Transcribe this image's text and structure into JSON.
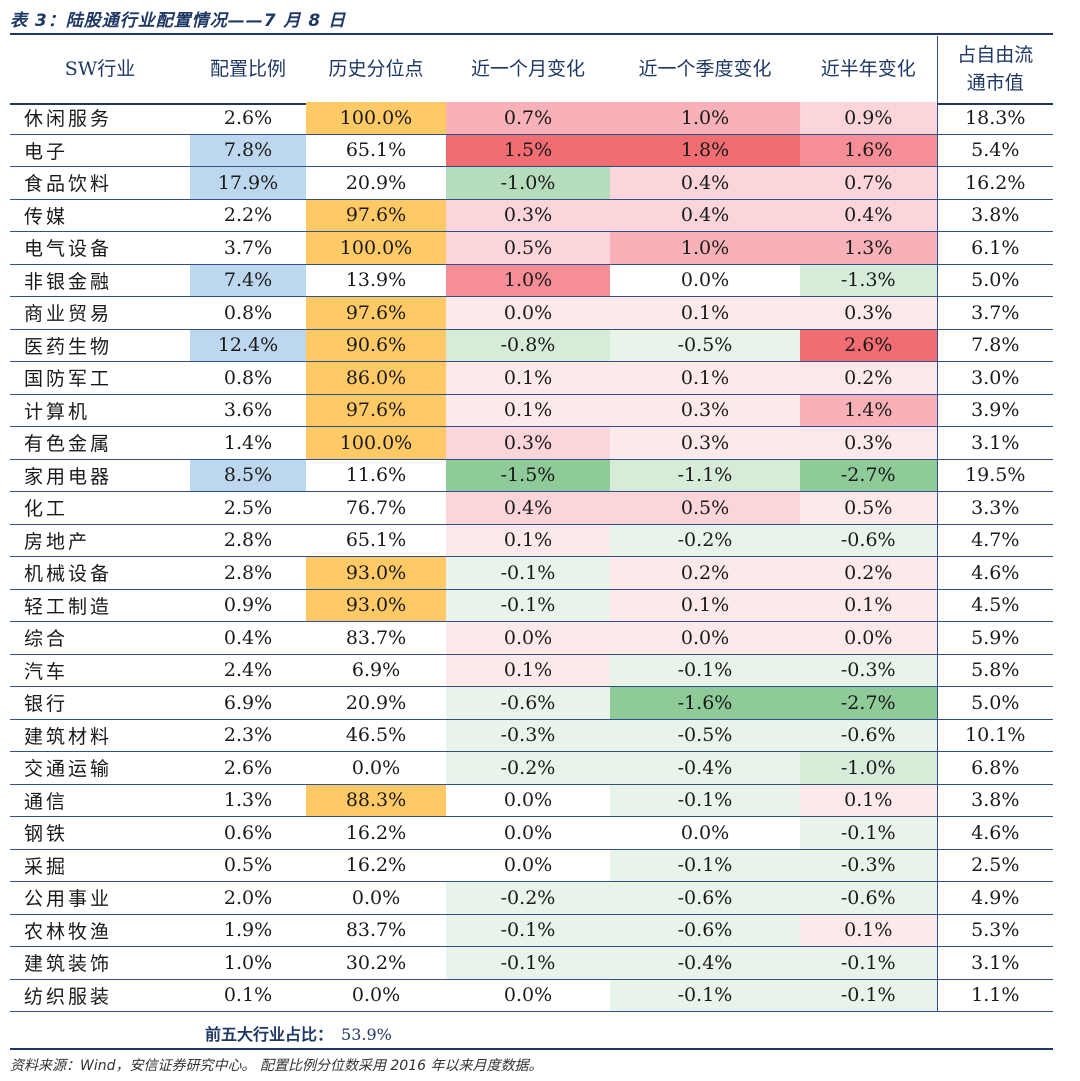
{
  "title": "表 3：陆股通行业配置情况——7 月 8 日",
  "headers": [
    "SW行业",
    "配置比例",
    "历史分位点",
    "近一个月变化",
    "近一个季度变化",
    "近半年变化",
    "占自由流",
    "通市值"
  ],
  "colors": {
    "blue": "#bdd7ee",
    "orange": "#ffc966",
    "red1": "#fde9ec",
    "red2": "#fbd5da",
    "red3": "#f8b1b8",
    "red4": "#f58e96",
    "red5": "#f26d72",
    "green1": "#e8f4ea",
    "green2": "#d6ecd9",
    "green3": "#b5dcbb",
    "green4": "#8ecb98"
  },
  "rows": [
    {
      "cells": [
        "休闲服务",
        "2.6%",
        "100.0%",
        "0.7%",
        "1.0%",
        "0.9%",
        "18.3%"
      ],
      "fill": [
        "",
        "",
        "orange",
        "red3",
        "red3",
        "red2",
        ""
      ]
    },
    {
      "cells": [
        "电子",
        "7.8%",
        "65.1%",
        "1.5%",
        "1.8%",
        "1.6%",
        "5.4%"
      ],
      "fill": [
        "",
        "blue",
        "",
        "red5",
        "red5",
        "red4",
        ""
      ]
    },
    {
      "cells": [
        "食品饮料",
        "17.9%",
        "20.9%",
        "-1.0%",
        "0.4%",
        "0.7%",
        "16.2%"
      ],
      "fill": [
        "",
        "blue",
        "",
        "green3",
        "red2",
        "red2",
        ""
      ]
    },
    {
      "cells": [
        "传媒",
        "2.2%",
        "97.6%",
        "0.3%",
        "0.4%",
        "0.4%",
        "3.8%"
      ],
      "fill": [
        "",
        "",
        "orange",
        "red2",
        "red2",
        "red2",
        ""
      ]
    },
    {
      "cells": [
        "电气设备",
        "3.7%",
        "100.0%",
        "0.5%",
        "1.0%",
        "1.3%",
        "6.1%"
      ],
      "fill": [
        "",
        "",
        "orange",
        "red2",
        "red3",
        "red3",
        ""
      ]
    },
    {
      "cells": [
        "非银金融",
        "7.4%",
        "13.9%",
        "1.0%",
        "0.0%",
        "-1.3%",
        "5.0%"
      ],
      "fill": [
        "",
        "blue",
        "",
        "red4",
        "",
        "green2",
        ""
      ]
    },
    {
      "cells": [
        "商业贸易",
        "0.8%",
        "97.6%",
        "0.0%",
        "0.1%",
        "0.3%",
        "3.7%"
      ],
      "fill": [
        "",
        "",
        "orange",
        "red1",
        "red1",
        "red1",
        ""
      ]
    },
    {
      "cells": [
        "医药生物",
        "12.4%",
        "90.6%",
        "-0.8%",
        "-0.5%",
        "2.6%",
        "7.8%"
      ],
      "fill": [
        "",
        "blue",
        "orange",
        "green2",
        "green1",
        "red5",
        ""
      ]
    },
    {
      "cells": [
        "国防军工",
        "0.8%",
        "86.0%",
        "0.1%",
        "0.1%",
        "0.2%",
        "3.0%"
      ],
      "fill": [
        "",
        "",
        "orange",
        "red1",
        "red1",
        "red1",
        ""
      ]
    },
    {
      "cells": [
        "计算机",
        "3.6%",
        "97.6%",
        "0.1%",
        "0.3%",
        "1.4%",
        "3.9%"
      ],
      "fill": [
        "",
        "",
        "orange",
        "red1",
        "red1",
        "red3",
        ""
      ]
    },
    {
      "cells": [
        "有色金属",
        "1.4%",
        "100.0%",
        "0.3%",
        "0.3%",
        "0.3%",
        "3.1%"
      ],
      "fill": [
        "",
        "",
        "orange",
        "red2",
        "red1",
        "red1",
        ""
      ]
    },
    {
      "cells": [
        "家用电器",
        "8.5%",
        "11.6%",
        "-1.5%",
        "-1.1%",
        "-2.7%",
        "19.5%"
      ],
      "fill": [
        "",
        "blue",
        "",
        "green4",
        "green2",
        "green4",
        ""
      ]
    },
    {
      "cells": [
        "化工",
        "2.5%",
        "76.7%",
        "0.4%",
        "0.5%",
        "0.5%",
        "3.3%"
      ],
      "fill": [
        "",
        "",
        "",
        "red2",
        "red2",
        "red1",
        ""
      ]
    },
    {
      "cells": [
        "房地产",
        "2.8%",
        "65.1%",
        "0.1%",
        "-0.2%",
        "-0.6%",
        "4.7%"
      ],
      "fill": [
        "",
        "",
        "",
        "red1",
        "green1",
        "green1",
        ""
      ]
    },
    {
      "cells": [
        "机械设备",
        "2.8%",
        "93.0%",
        "-0.1%",
        "0.2%",
        "0.2%",
        "4.6%"
      ],
      "fill": [
        "",
        "",
        "orange",
        "green1",
        "red1",
        "red1",
        ""
      ]
    },
    {
      "cells": [
        "轻工制造",
        "0.9%",
        "93.0%",
        "-0.1%",
        "0.1%",
        "0.1%",
        "4.5%"
      ],
      "fill": [
        "",
        "",
        "orange",
        "green1",
        "red1",
        "red1",
        ""
      ]
    },
    {
      "cells": [
        "综合",
        "0.4%",
        "83.7%",
        "0.0%",
        "0.0%",
        "0.0%",
        "5.9%"
      ],
      "fill": [
        "",
        "",
        "",
        "red1",
        "red1",
        "red1",
        ""
      ]
    },
    {
      "cells": [
        "汽车",
        "2.4%",
        "6.9%",
        "0.1%",
        "-0.1%",
        "-0.3%",
        "5.8%"
      ],
      "fill": [
        "",
        "",
        "",
        "red1",
        "green1",
        "green1",
        ""
      ]
    },
    {
      "cells": [
        "银行",
        "6.9%",
        "20.9%",
        "-0.6%",
        "-1.6%",
        "-2.7%",
        "5.0%"
      ],
      "fill": [
        "",
        "",
        "",
        "green1",
        "green4",
        "green4",
        ""
      ]
    },
    {
      "cells": [
        "建筑材料",
        "2.3%",
        "46.5%",
        "-0.3%",
        "-0.5%",
        "-0.6%",
        "10.1%"
      ],
      "fill": [
        "",
        "",
        "",
        "green1",
        "green1",
        "green1",
        ""
      ]
    },
    {
      "cells": [
        "交通运输",
        "2.6%",
        "0.0%",
        "-0.2%",
        "-0.4%",
        "-1.0%",
        "6.8%"
      ],
      "fill": [
        "",
        "",
        "",
        "green1",
        "green1",
        "green2",
        ""
      ]
    },
    {
      "cells": [
        "通信",
        "1.3%",
        "88.3%",
        "0.0%",
        "-0.1%",
        "0.1%",
        "3.8%"
      ],
      "fill": [
        "",
        "",
        "orange",
        "",
        "green1",
        "red1",
        ""
      ]
    },
    {
      "cells": [
        "钢铁",
        "0.6%",
        "16.2%",
        "0.0%",
        "0.0%",
        "-0.1%",
        "4.6%"
      ],
      "fill": [
        "",
        "",
        "",
        "",
        "",
        "green1",
        ""
      ]
    },
    {
      "cells": [
        "采掘",
        "0.5%",
        "16.2%",
        "0.0%",
        "-0.1%",
        "-0.3%",
        "2.5%"
      ],
      "fill": [
        "",
        "",
        "",
        "",
        "green1",
        "green1",
        ""
      ]
    },
    {
      "cells": [
        "公用事业",
        "2.0%",
        "0.0%",
        "-0.2%",
        "-0.6%",
        "-0.6%",
        "4.9%"
      ],
      "fill": [
        "",
        "",
        "",
        "green1",
        "green1",
        "green1",
        ""
      ]
    },
    {
      "cells": [
        "农林牧渔",
        "1.9%",
        "83.7%",
        "-0.1%",
        "-0.6%",
        "0.1%",
        "5.3%"
      ],
      "fill": [
        "",
        "",
        "",
        "green1",
        "green1",
        "red1",
        ""
      ]
    },
    {
      "cells": [
        "建筑装饰",
        "1.0%",
        "30.2%",
        "-0.1%",
        "-0.4%",
        "-0.1%",
        "3.1%"
      ],
      "fill": [
        "",
        "",
        "",
        "green1",
        "green1",
        "green1",
        ""
      ]
    },
    {
      "cells": [
        "纺织服装",
        "0.1%",
        "0.0%",
        "0.0%",
        "-0.1%",
        "-0.1%",
        "1.1%"
      ],
      "fill": [
        "",
        "",
        "",
        "",
        "green1",
        "green1",
        ""
      ]
    }
  ],
  "summary": {
    "label": "前五大行业占比：",
    "value": "53.9%"
  },
  "source": "资料来源：Wind，安信证券研究中心。 配置比例分位数采用 2016 年以来月度数据。"
}
